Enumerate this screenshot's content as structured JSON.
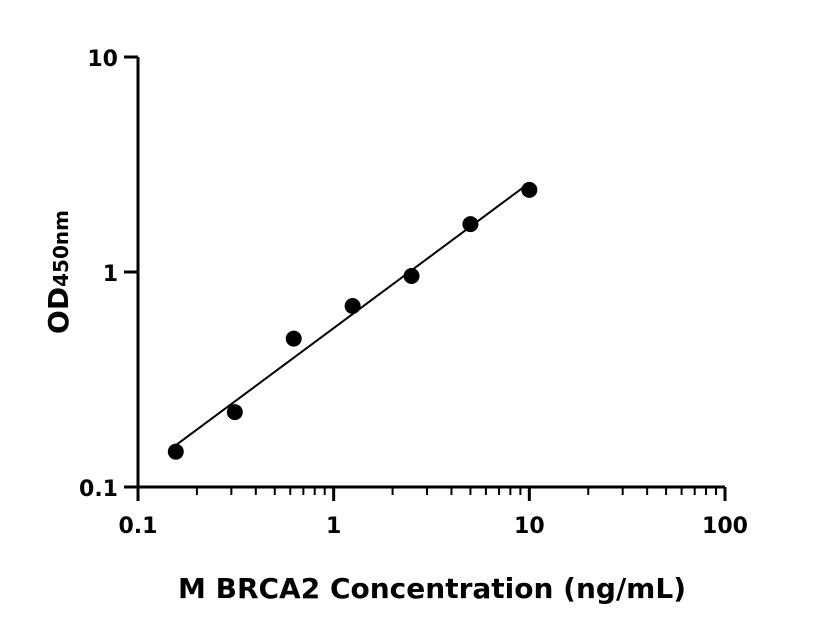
{
  "chart_data": {
    "type": "scatter",
    "xlabel": "M BRCA2 Concentration (ng/mL)",
    "ylabel_main": "OD",
    "ylabel_sub": "450nm",
    "x_scale": "log",
    "y_scale": "log",
    "xlim": [
      0.1,
      100
    ],
    "ylim": [
      0.1,
      10
    ],
    "x_ticks": [
      0.1,
      1,
      10,
      100
    ],
    "x_tick_labels": [
      "0.1",
      "1",
      "10",
      "100"
    ],
    "y_ticks": [
      0.1,
      1,
      10
    ],
    "y_tick_labels": [
      "0.1",
      "1",
      "10"
    ],
    "grid": false,
    "fit_line": "log-log linear fit",
    "marker_color": "#000000",
    "series": [
      {
        "x": [
          0.156,
          0.3125,
          0.625,
          1.25,
          2.5,
          5,
          10
        ],
        "y": [
          0.146,
          0.223,
          0.49,
          0.695,
          0.958,
          1.67,
          2.41
        ]
      }
    ]
  }
}
